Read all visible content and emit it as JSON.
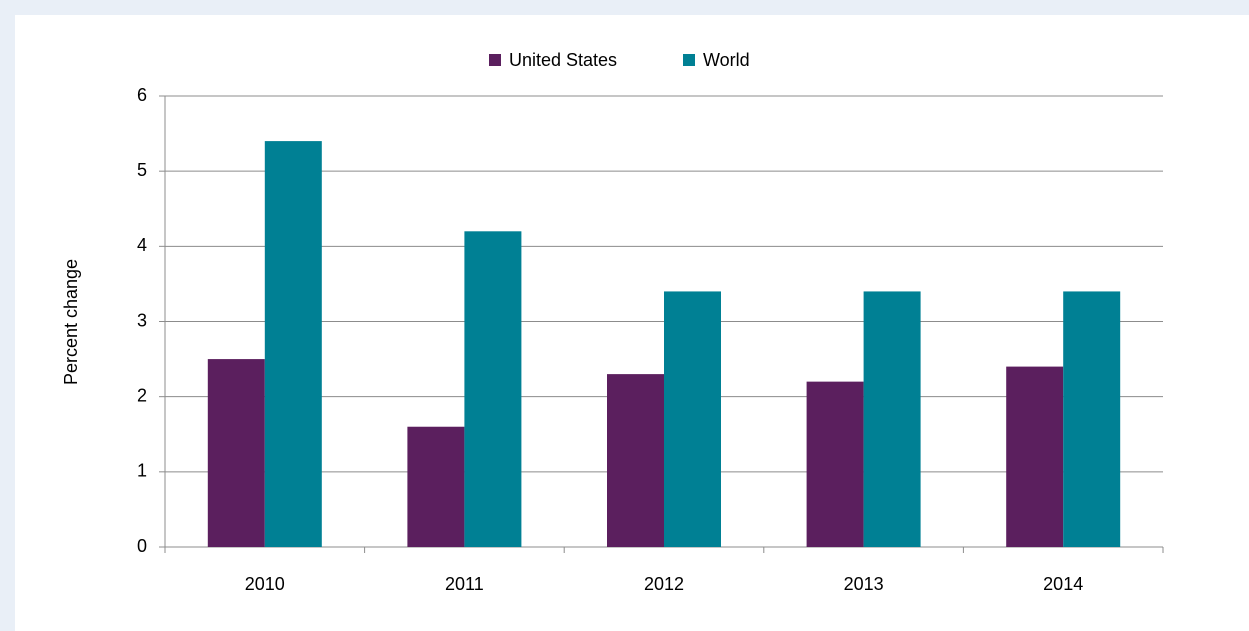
{
  "chart_data": {
    "type": "bar",
    "categories": [
      "2010",
      "2011",
      "2012",
      "2013",
      "2014"
    ],
    "series": [
      {
        "name": "United States",
        "color": "#5b1f5e",
        "values": [
          2.5,
          1.6,
          2.3,
          2.2,
          2.4
        ]
      },
      {
        "name": "World",
        "color": "#008094",
        "values": [
          5.4,
          4.2,
          3.4,
          3.4,
          3.4
        ]
      }
    ],
    "y_label": "Percent change",
    "ylim": [
      0,
      6
    ],
    "yticks": [
      0,
      1,
      2,
      3,
      4,
      5,
      6
    ],
    "grid": true,
    "legend": "top"
  }
}
